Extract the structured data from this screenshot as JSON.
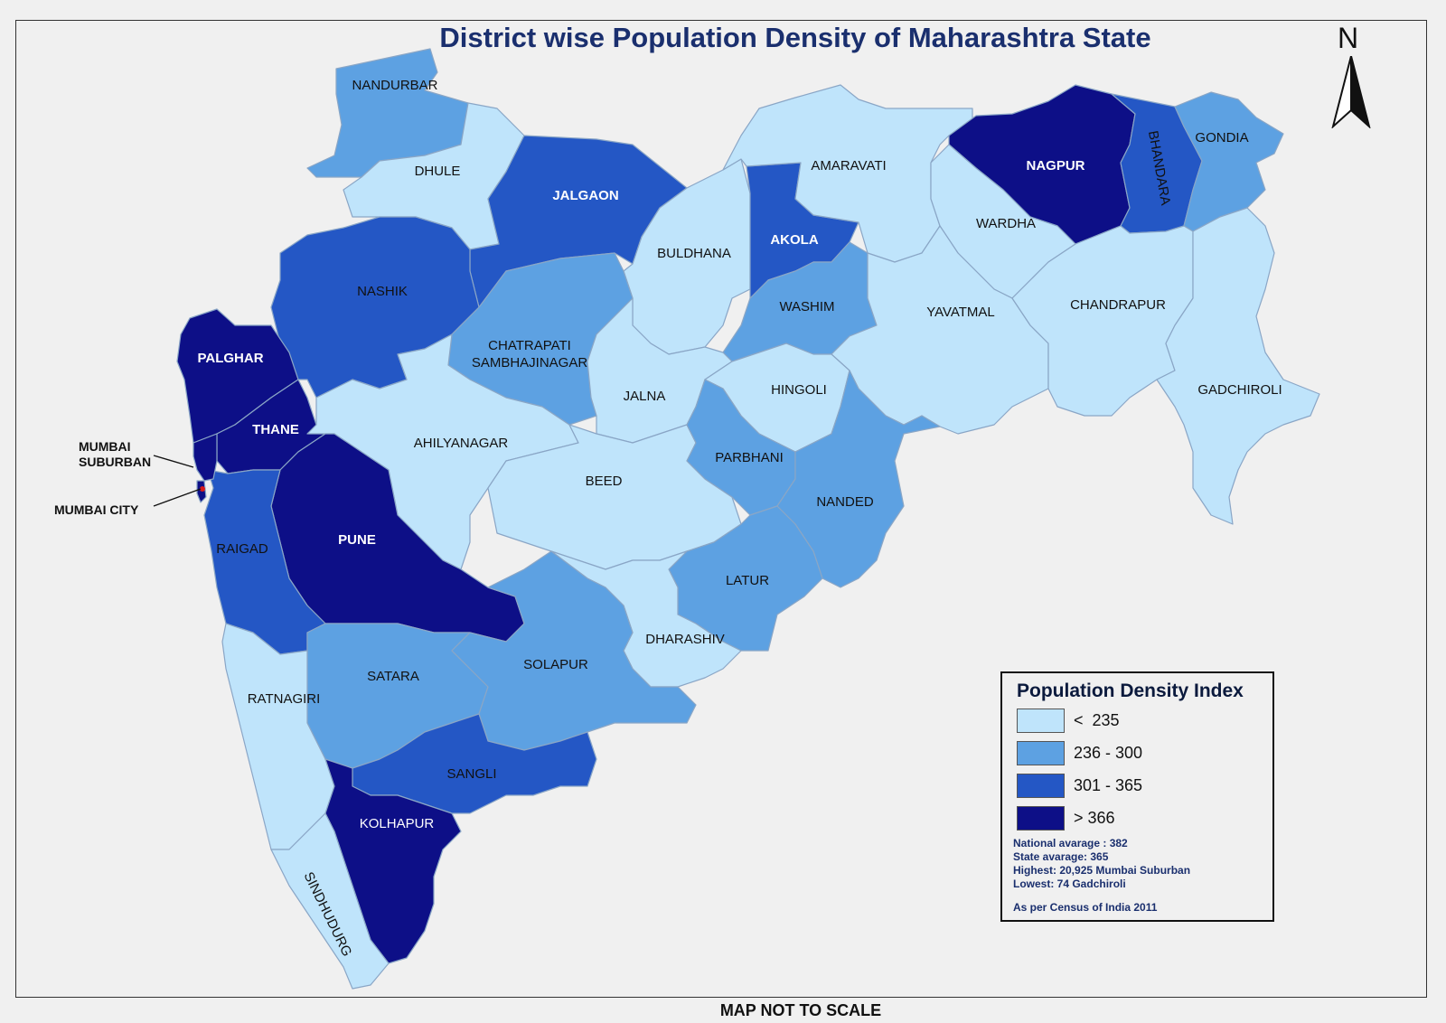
{
  "title": "District wise Population Density of Maharashtra State",
  "footer": "MAP NOT TO SCALE",
  "north": "N",
  "colors": {
    "lt235": "#bfe4fb",
    "r236_300": "#5da1e2",
    "r301_365": "#2457c5",
    "gt366": "#0d0f87",
    "border": "#8aa6c6",
    "label_dark": "#111111",
    "label_light": "#ffffff"
  },
  "legend": {
    "title": "Population Density Index",
    "classes": [
      {
        "range": "<  235",
        "color": "#bfe4fb"
      },
      {
        "range": "236 - 300",
        "color": "#5da1e2"
      },
      {
        "range": "301 - 365",
        "color": "#2457c5"
      },
      {
        "range": "> 366",
        "color": "#0d0f87"
      }
    ],
    "notes": [
      "National avarage : 382",
      "State avarage: 365",
      "Highest: 20,925 Mumbai Suburban",
      "Lowest: 74 Gadchiroli"
    ],
    "source": "As per Census of India 2011"
  },
  "callouts": {
    "suburban": "MUMBAI SUBURBAN",
    "suburban_line1": "MUMBAI",
    "suburban_line2": "SUBURBAN",
    "city": "MUMBAI CITY"
  },
  "districts": [
    {
      "name": "NANDURBAR",
      "class": "236-300"
    },
    {
      "name": "DHULE",
      "class": "<235"
    },
    {
      "name": "JALGAON",
      "class": "301-365"
    },
    {
      "name": "BULDHANA",
      "class": "<235"
    },
    {
      "name": "AKOLA",
      "class": "301-365"
    },
    {
      "name": "AMARAVATI",
      "class": "<235"
    },
    {
      "name": "NAGPUR",
      "class": ">366"
    },
    {
      "name": "BHANDARA",
      "class": "301-365"
    },
    {
      "name": "GONDIA",
      "class": "236-300"
    },
    {
      "name": "WARDHA",
      "class": "<235"
    },
    {
      "name": "WASHIM",
      "class": "236-300"
    },
    {
      "name": "YAVATMAL",
      "class": "<235"
    },
    {
      "name": "CHANDRAPUR",
      "class": "<235"
    },
    {
      "name": "GADCHIROLI",
      "class": "<235"
    },
    {
      "name": "NASHIK",
      "class": "301-365"
    },
    {
      "name": "PALGHAR",
      "class": ">366"
    },
    {
      "name": "THANE",
      "class": ">366"
    },
    {
      "name": "CHATRAPATI SAMBHAJINAGAR",
      "class": "236-300"
    },
    {
      "name": "JALNA",
      "class": "<235"
    },
    {
      "name": "HINGOLI",
      "class": "<235"
    },
    {
      "name": "AHILYANAGAR",
      "class": "<235"
    },
    {
      "name": "BEED",
      "class": "<235"
    },
    {
      "name": "PARBHANI",
      "class": "236-300"
    },
    {
      "name": "NANDED",
      "class": "236-300"
    },
    {
      "name": "PUNE",
      "class": ">366"
    },
    {
      "name": "RAIGAD",
      "class": "301-365"
    },
    {
      "name": "LATUR",
      "class": "236-300"
    },
    {
      "name": "DHARASHIV",
      "class": "<235"
    },
    {
      "name": "SATARA",
      "class": "236-300"
    },
    {
      "name": "SOLAPUR",
      "class": "236-300"
    },
    {
      "name": "RATNAGIRI",
      "class": "<235"
    },
    {
      "name": "SANGLI",
      "class": "301-365"
    },
    {
      "name": "KOLHAPUR",
      "class": ">366"
    },
    {
      "name": "SINDHUDURG",
      "class": "<235"
    },
    {
      "name": "MUMBAI SUBURBAN",
      "class": ">366"
    },
    {
      "name": "MUMBAI CITY",
      "class": ">366"
    }
  ]
}
